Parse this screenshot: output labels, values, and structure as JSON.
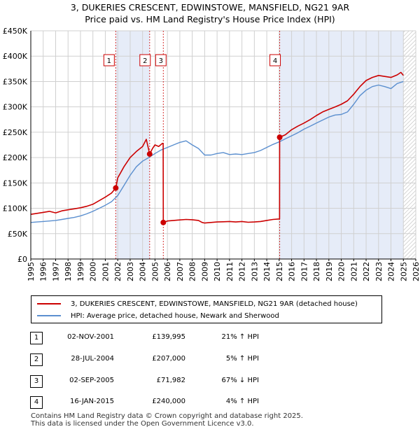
{
  "title_line1": "3, DUKERIES CRESCENT, EDWINSTOWE, MANSFIELD, NG21 9AR",
  "title_line2": "Price paid vs. HM Land Registry's House Price Index (HPI)",
  "legend": {
    "property_label": "3, DUKERIES CRESCENT, EDWINSTOWE, MANSFIELD, NG21 9AR (detached house)",
    "hpi_label": "HPI: Average price, detached house, Newark and Sherwood"
  },
  "colors": {
    "property": "#cc0000",
    "hpi": "#5b8fcf",
    "band": "#e6ecf8",
    "grid": "#d0d0d0"
  },
  "sales": [
    {
      "num": "1",
      "date": "02-NOV-2001",
      "price": "£139,995",
      "hpi": "21% ↑ HPI"
    },
    {
      "num": "2",
      "date": "28-JUL-2004",
      "price": "£207,000",
      "hpi": "5% ↑ HPI"
    },
    {
      "num": "3",
      "date": "02-SEP-2005",
      "price": "£71,982",
      "hpi": "67% ↓ HPI"
    },
    {
      "num": "4",
      "date": "16-JAN-2015",
      "price": "£240,000",
      "hpi": "4% ↑ HPI"
    }
  ],
  "footer_line1": "Contains HM Land Registry data © Crown copyright and database right 2025.",
  "footer_line2": "This data is licensed under the Open Government Licence v3.0.",
  "chart_data": {
    "type": "line",
    "title": "3, DUKERIES CRESCENT, EDWINSTOWE, MANSFIELD, NG21 9AR",
    "subtitle": "Price paid vs. HM Land Registry's House Price Index (HPI)",
    "xlabel": "",
    "ylabel": "",
    "xlim": [
      1995,
      2026
    ],
    "ylim": [
      0,
      450000
    ],
    "y_ticks": [
      0,
      50000,
      100000,
      150000,
      200000,
      250000,
      300000,
      350000,
      400000,
      450000
    ],
    "y_tick_labels": [
      "£0",
      "£50K",
      "£100K",
      "£150K",
      "£200K",
      "£250K",
      "£300K",
      "£350K",
      "£400K",
      "£450K"
    ],
    "x_ticks": [
      1995,
      1996,
      1997,
      1998,
      1999,
      2000,
      2001,
      2002,
      2003,
      2004,
      2005,
      2006,
      2007,
      2008,
      2009,
      2010,
      2011,
      2012,
      2013,
      2014,
      2015,
      2016,
      2017,
      2018,
      2019,
      2020,
      2021,
      2022,
      2023,
      2024,
      2025,
      2026
    ],
    "x_tick_labels": [
      "1995",
      "1996",
      "1997",
      "1998",
      "1999",
      "2000",
      "2001",
      "2002",
      "2003",
      "2004",
      "2005",
      "2006",
      "2007",
      "2008",
      "2009",
      "2010",
      "2011",
      "2012",
      "2013",
      "2014",
      "2015",
      "2016",
      "2017",
      "2018",
      "2019",
      "2020",
      "2021",
      "2022",
      "2023",
      "2024",
      "2025",
      "2026"
    ],
    "grid": true,
    "shaded_ranges": [
      [
        2001.84,
        2004.57
      ],
      [
        2015.04,
        2025.0
      ]
    ],
    "hatched_range": [
      2025.0,
      2026.0
    ],
    "sale_markers": [
      {
        "label": "1",
        "x": 2001.84,
        "y": 139995
      },
      {
        "label": "2",
        "x": 2004.57,
        "y": 207000
      },
      {
        "label": "3",
        "x": 2005.67,
        "y": 71982
      },
      {
        "label": "4",
        "x": 2015.04,
        "y": 240000
      }
    ],
    "series": [
      {
        "name": "3, DUKERIES CRESCENT, EDWINSTOWE, MANSFIELD, NG21 9AR (detached house)",
        "color": "#cc0000",
        "x": [
          1995.0,
          1995.5,
          1996.0,
          1996.5,
          1997.0,
          1997.5,
          1998.0,
          1998.5,
          1999.0,
          1999.5,
          2000.0,
          2000.5,
          2001.0,
          2001.5,
          2001.84,
          2002.0,
          2002.5,
          2003.0,
          2003.5,
          2004.0,
          2004.3,
          2004.57,
          2004.8,
          2005.0,
          2005.3,
          2005.6,
          2005.66,
          2005.67,
          2006.0,
          2006.5,
          2007.0,
          2007.5,
          2008.0,
          2008.5,
          2008.8,
          2009.0,
          2009.5,
          2010.0,
          2010.5,
          2011.0,
          2011.5,
          2012.0,
          2012.5,
          2013.0,
          2013.5,
          2014.0,
          2014.5,
          2015.0,
          2015.03,
          2015.04,
          2015.5,
          2016.0,
          2016.5,
          2017.0,
          2017.5,
          2018.0,
          2018.5,
          2019.0,
          2019.5,
          2020.0,
          2020.5,
          2021.0,
          2021.5,
          2022.0,
          2022.5,
          2023.0,
          2023.5,
          2024.0,
          2024.5,
          2024.8,
          2025.0
        ],
        "y": [
          88000,
          90000,
          92000,
          94000,
          91000,
          95000,
          97000,
          99000,
          101000,
          104000,
          108000,
          115000,
          122000,
          130000,
          139995,
          160000,
          182000,
          200000,
          212000,
          222000,
          236000,
          207000,
          218000,
          225000,
          222000,
          228000,
          228000,
          71982,
          75000,
          76000,
          77000,
          78000,
          77500,
          76000,
          72000,
          71000,
          72000,
          73000,
          73500,
          74000,
          73000,
          74000,
          72500,
          73000,
          74000,
          76000,
          78000,
          79000,
          79000,
          240000,
          245000,
          255000,
          262000,
          268000,
          275000,
          283000,
          290000,
          295000,
          300000,
          305000,
          312000,
          325000,
          340000,
          352000,
          358000,
          362000,
          360000,
          358000,
          363000,
          368000,
          362000
        ]
      },
      {
        "name": "HPI: Average price, detached house, Newark and Sherwood",
        "color": "#5b8fcf",
        "x": [
          1995.0,
          1995.5,
          1996.0,
          1996.5,
          1997.0,
          1997.5,
          1998.0,
          1998.5,
          1999.0,
          1999.5,
          2000.0,
          2000.5,
          2001.0,
          2001.5,
          2002.0,
          2002.5,
          2003.0,
          2003.5,
          2004.0,
          2004.5,
          2005.0,
          2005.5,
          2006.0,
          2006.5,
          2007.0,
          2007.5,
          2008.0,
          2008.5,
          2009.0,
          2009.5,
          2010.0,
          2010.5,
          2011.0,
          2011.5,
          2012.0,
          2012.5,
          2013.0,
          2013.5,
          2014.0,
          2014.5,
          2015.0,
          2015.5,
          2016.0,
          2016.5,
          2017.0,
          2017.5,
          2018.0,
          2018.5,
          2019.0,
          2019.5,
          2020.0,
          2020.5,
          2021.0,
          2021.5,
          2022.0,
          2022.5,
          2023.0,
          2023.5,
          2024.0,
          2024.5,
          2025.0
        ],
        "y": [
          72000,
          73000,
          74000,
          75000,
          76000,
          78000,
          80000,
          82000,
          85000,
          89000,
          94000,
          100000,
          106000,
          113000,
          125000,
          145000,
          165000,
          182000,
          193000,
          200000,
          208000,
          215000,
          220000,
          225000,
          230000,
          233000,
          225000,
          218000,
          205000,
          205000,
          208000,
          210000,
          206000,
          207000,
          206000,
          208000,
          210000,
          214000,
          220000,
          226000,
          231000,
          237000,
          243000,
          249000,
          256000,
          262000,
          268000,
          274000,
          280000,
          284000,
          285000,
          290000,
          305000,
          322000,
          333000,
          340000,
          343000,
          340000,
          336000,
          346000,
          350000
        ]
      }
    ]
  }
}
